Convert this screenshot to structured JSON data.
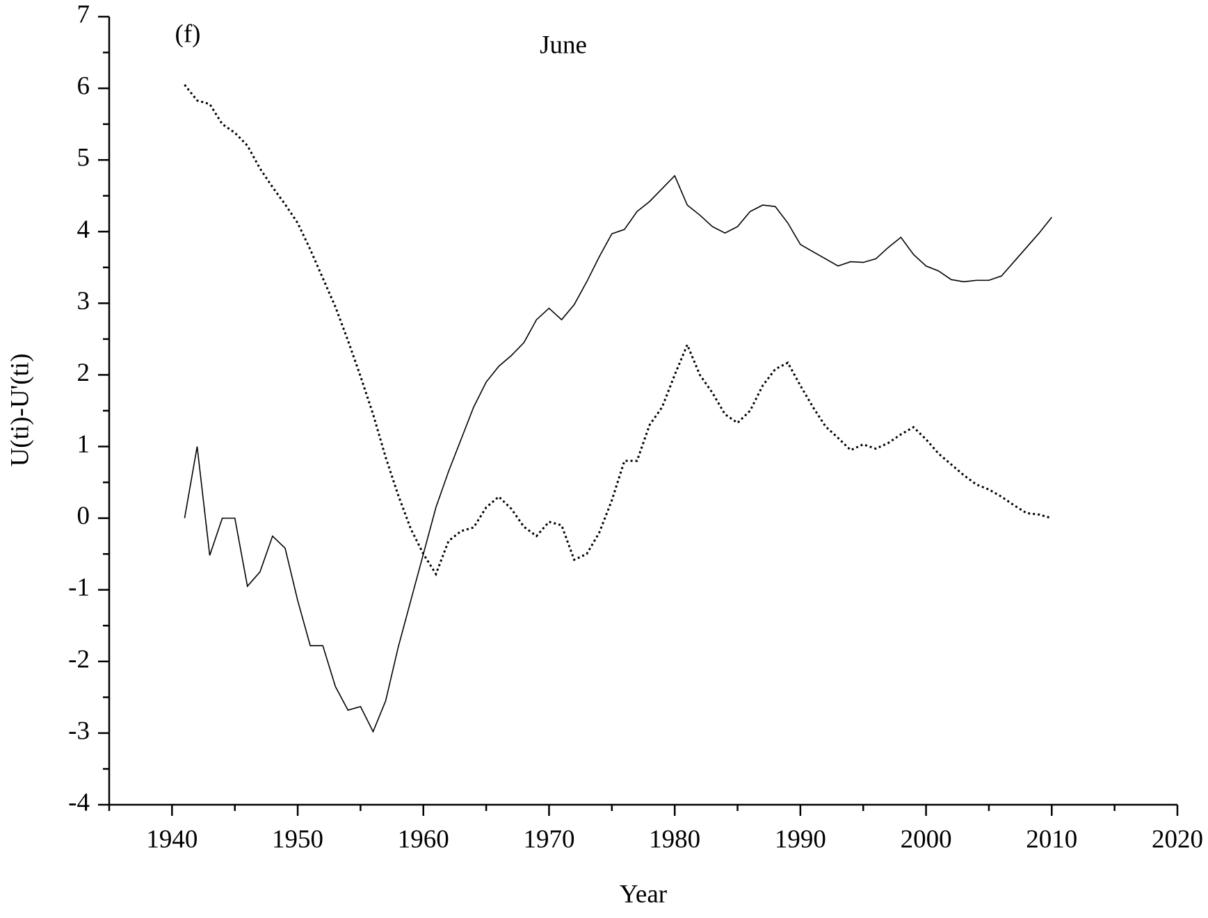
{
  "chart_data": {
    "type": "line",
    "title": "June",
    "annotation": "(f)",
    "xlabel": "Year",
    "ylabel": "U(ti)-U'(ti)",
    "xlim": [
      1935,
      2020
    ],
    "ylim": [
      -4,
      7
    ],
    "xticks": [
      1940,
      1950,
      1960,
      1970,
      1980,
      1990,
      2000,
      2010,
      2020
    ],
    "yticks": [
      -4,
      -3,
      -2,
      -1,
      0,
      1,
      2,
      3,
      4,
      5,
      6,
      7
    ],
    "xminorticks": [
      1935,
      1945,
      1955,
      1965,
      1975,
      1985,
      1995,
      2005,
      2015
    ],
    "yminorticks": [
      -3.5,
      -2.5,
      -1.5,
      -0.5,
      0.5,
      1.5,
      2.5,
      3.5,
      4.5,
      5.5,
      6.5
    ],
    "x": [
      1941,
      1942,
      1943,
      1944,
      1945,
      1946,
      1947,
      1948,
      1949,
      1950,
      1951,
      1952,
      1953,
      1954,
      1955,
      1956,
      1957,
      1958,
      1959,
      1960,
      1961,
      1962,
      1963,
      1964,
      1965,
      1966,
      1967,
      1968,
      1969,
      1970,
      1971,
      1972,
      1973,
      1974,
      1975,
      1976,
      1977,
      1978,
      1979,
      1980,
      1981,
      1982,
      1983,
      1984,
      1985,
      1986,
      1987,
      1988,
      1989,
      1990,
      1991,
      1992,
      1993,
      1994,
      1995,
      1996,
      1997,
      1998,
      1999,
      2000,
      2001,
      2002,
      2003,
      2004,
      2005,
      2006,
      2007,
      2008,
      2009,
      2010
    ],
    "series": [
      {
        "color": "#000000",
        "dash": "solid",
        "values": [
          0,
          1.0,
          -0.52,
          0,
          0,
          -0.95,
          -0.75,
          -0.25,
          -0.42,
          -1.15,
          -1.78,
          -1.78,
          -2.35,
          -2.68,
          -2.63,
          -2.98,
          -2.55,
          -1.8,
          -1.15,
          -0.5,
          0.15,
          0.65,
          1.1,
          1.55,
          1.9,
          2.12,
          2.27,
          2.45,
          2.77,
          2.93,
          2.77,
          2.98,
          3.3,
          3.65,
          3.97,
          4.03,
          4.28,
          4.42,
          4.6,
          4.78,
          4.37,
          4.23,
          4.07,
          3.98,
          4.07,
          4.28,
          4.37,
          4.35,
          4.12,
          3.82,
          3.72,
          3.62,
          3.52,
          3.58,
          3.57,
          3.62,
          3.78,
          3.92,
          3.68,
          3.52,
          3.45,
          3.33,
          3.3,
          3.32,
          3.32,
          3.38,
          3.58,
          3.78,
          3.98,
          4.2
        ]
      },
      {
        "color": "#000000",
        "dash": "dotted",
        "values": [
          6.05,
          5.83,
          5.78,
          5.5,
          5.38,
          5.2,
          4.88,
          4.62,
          4.38,
          4.12,
          3.75,
          3.35,
          2.95,
          2.48,
          1.98,
          1.45,
          0.85,
          0.32,
          -0.15,
          -0.5,
          -0.78,
          -0.32,
          -0.18,
          -0.13,
          0.15,
          0.3,
          0.13,
          -0.12,
          -0.25,
          -0.05,
          -0.1,
          -0.58,
          -0.5,
          -0.2,
          0.25,
          0.8,
          0.8,
          1.3,
          1.55,
          2.0,
          2.42,
          2.0,
          1.75,
          1.45,
          1.33,
          1.5,
          1.85,
          2.08,
          2.17,
          1.85,
          1.55,
          1.28,
          1.12,
          0.95,
          1.03,
          0.97,
          1.05,
          1.17,
          1.27,
          1.1,
          0.9,
          0.75,
          0.6,
          0.47,
          0.4,
          0.3,
          0.18,
          0.07,
          0.05,
          0
        ]
      }
    ]
  }
}
